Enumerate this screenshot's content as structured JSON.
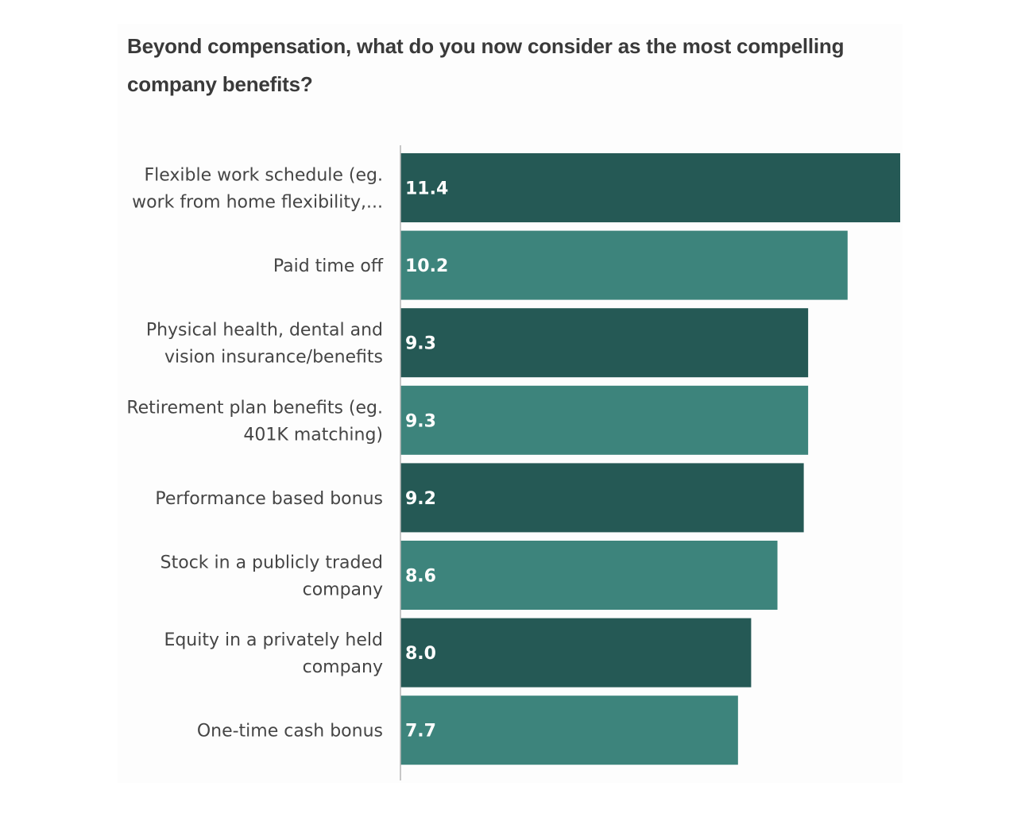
{
  "chart_data": {
    "type": "bar",
    "orientation": "horizontal",
    "title": "Beyond compensation, what do you now consider as the most compelling company benefits?",
    "categories": [
      [
        "Flexible work schedule (eg.",
        "work from home flexibility,..."
      ],
      [
        "Paid time off"
      ],
      [
        "Physical health, dental and",
        "vision insurance/benefits"
      ],
      [
        "Retirement plan benefits (eg.",
        "401K matching)"
      ],
      [
        "Performance based bonus"
      ],
      [
        "Stock in a publicly traded",
        "company"
      ],
      [
        "Equity in a privately held",
        "company"
      ],
      [
        "One-time cash bonus"
      ]
    ],
    "values": [
      11.4,
      10.2,
      9.3,
      9.3,
      9.2,
      8.6,
      8.0,
      7.7
    ],
    "value_labels": [
      "11.4",
      "10.2",
      "9.3",
      "9.3",
      "9.2",
      "8.6",
      "8.0",
      "7.7"
    ],
    "xlim": [
      0,
      11.4
    ],
    "xlabel": "",
    "ylabel": "",
    "grid": false,
    "colors": [
      "#255955",
      "#3d847c"
    ]
  }
}
